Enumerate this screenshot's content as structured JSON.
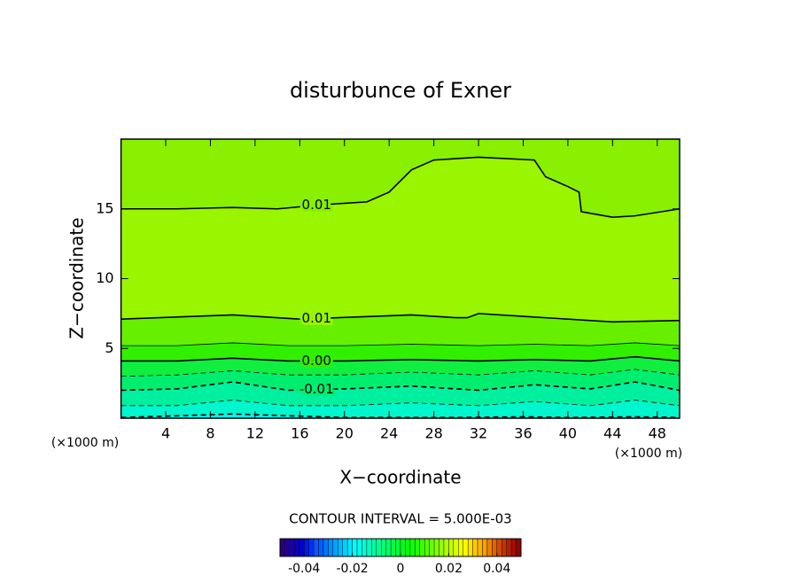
{
  "chart_data": {
    "type": "contour",
    "title": "disturbunce of Exner",
    "xlabel": "X−coordinate",
    "ylabel": "Z−coordinate",
    "x_unit_label": "(×1000 m)",
    "y_unit_label": "(×1000 m)",
    "xlim": [
      0,
      50
    ],
    "ylim": [
      0,
      20
    ],
    "xticks": [
      4,
      8,
      12,
      16,
      20,
      24,
      28,
      32,
      36,
      40,
      44,
      48
    ],
    "yticks": [
      5,
      10,
      15
    ],
    "background_color": "#00ffee",
    "contours": [
      {
        "level": -0.02,
        "fill": "#00f6cc",
        "x": [
          0,
          10,
          20,
          30,
          36,
          40,
          46,
          50
        ],
        "y": [
          0.05,
          0.3,
          0.05,
          0.05,
          0.1,
          0.05,
          0.1,
          0.05
        ]
      },
      {
        "level": -0.015,
        "fill": "#00f0a0",
        "x": [
          0,
          5,
          10,
          15,
          20,
          26,
          32,
          37,
          42,
          46,
          50
        ],
        "y": [
          0.9,
          0.9,
          1.3,
          0.9,
          0.9,
          1.1,
          0.9,
          1.2,
          0.9,
          1.3,
          0.9
        ]
      },
      {
        "level": -0.01,
        "label": "-0.01",
        "fill": "#00ee70",
        "x": [
          0,
          5,
          10,
          15,
          20,
          26,
          32,
          37,
          42,
          46,
          50
        ],
        "y": [
          2.0,
          2.1,
          2.6,
          2.0,
          2.1,
          2.3,
          2.0,
          2.4,
          2.1,
          2.6,
          2.0
        ]
      },
      {
        "level": -0.005,
        "fill": "#10ee40",
        "x": [
          0,
          5,
          10,
          15,
          20,
          26,
          32,
          37,
          42,
          46,
          50
        ],
        "y": [
          3.0,
          3.1,
          3.4,
          3.1,
          3.1,
          3.3,
          3.1,
          3.4,
          3.1,
          3.5,
          3.1
        ]
      },
      {
        "level": 0,
        "label": "0.00",
        "fill": "#30f000",
        "x": [
          0,
          5,
          10,
          15,
          20,
          26,
          32,
          37,
          42,
          46,
          50
        ],
        "y": [
          4.1,
          4.1,
          4.3,
          4.1,
          4.1,
          4.2,
          4.1,
          4.2,
          4.1,
          4.4,
          4.1
        ]
      },
      {
        "level": 0.005,
        "fill": "#66f000",
        "x": [
          0,
          5,
          10,
          15,
          20,
          26,
          32,
          37,
          42,
          46,
          50
        ],
        "y": [
          5.2,
          5.2,
          5.4,
          5.2,
          5.2,
          5.3,
          5.2,
          5.3,
          5.2,
          5.4,
          5.2
        ]
      },
      {
        "level": 0.01,
        "label": "0.01",
        "fill": "#99f500",
        "x": [
          0,
          10,
          16,
          26,
          30,
          31,
          32,
          36,
          44,
          50
        ],
        "y": [
          7.1,
          7.4,
          7.1,
          7.4,
          7.2,
          7.2,
          7.5,
          7.3,
          6.9,
          7.0
        ]
      },
      {
        "level": 0.01,
        "label": "0.01",
        "fill": "#88f000",
        "x": [
          0,
          5,
          10,
          14,
          18,
          22,
          24,
          26,
          28,
          32,
          37,
          38,
          40,
          41,
          41.2,
          44,
          46,
          50
        ],
        "y": [
          15,
          15,
          15.1,
          15,
          15.3,
          15.5,
          16.2,
          17.8,
          18.5,
          18.7,
          18.5,
          17.3,
          16.6,
          16.2,
          14.8,
          14.4,
          14.5,
          15
        ]
      }
    ],
    "contour_interval_text": "CONTOUR INTERVAL = 5.000E-03",
    "colorbar": {
      "lim": [
        -0.05,
        0.05
      ],
      "ticks": [
        -0.04,
        -0.02,
        0,
        0.02,
        0.04
      ]
    }
  }
}
